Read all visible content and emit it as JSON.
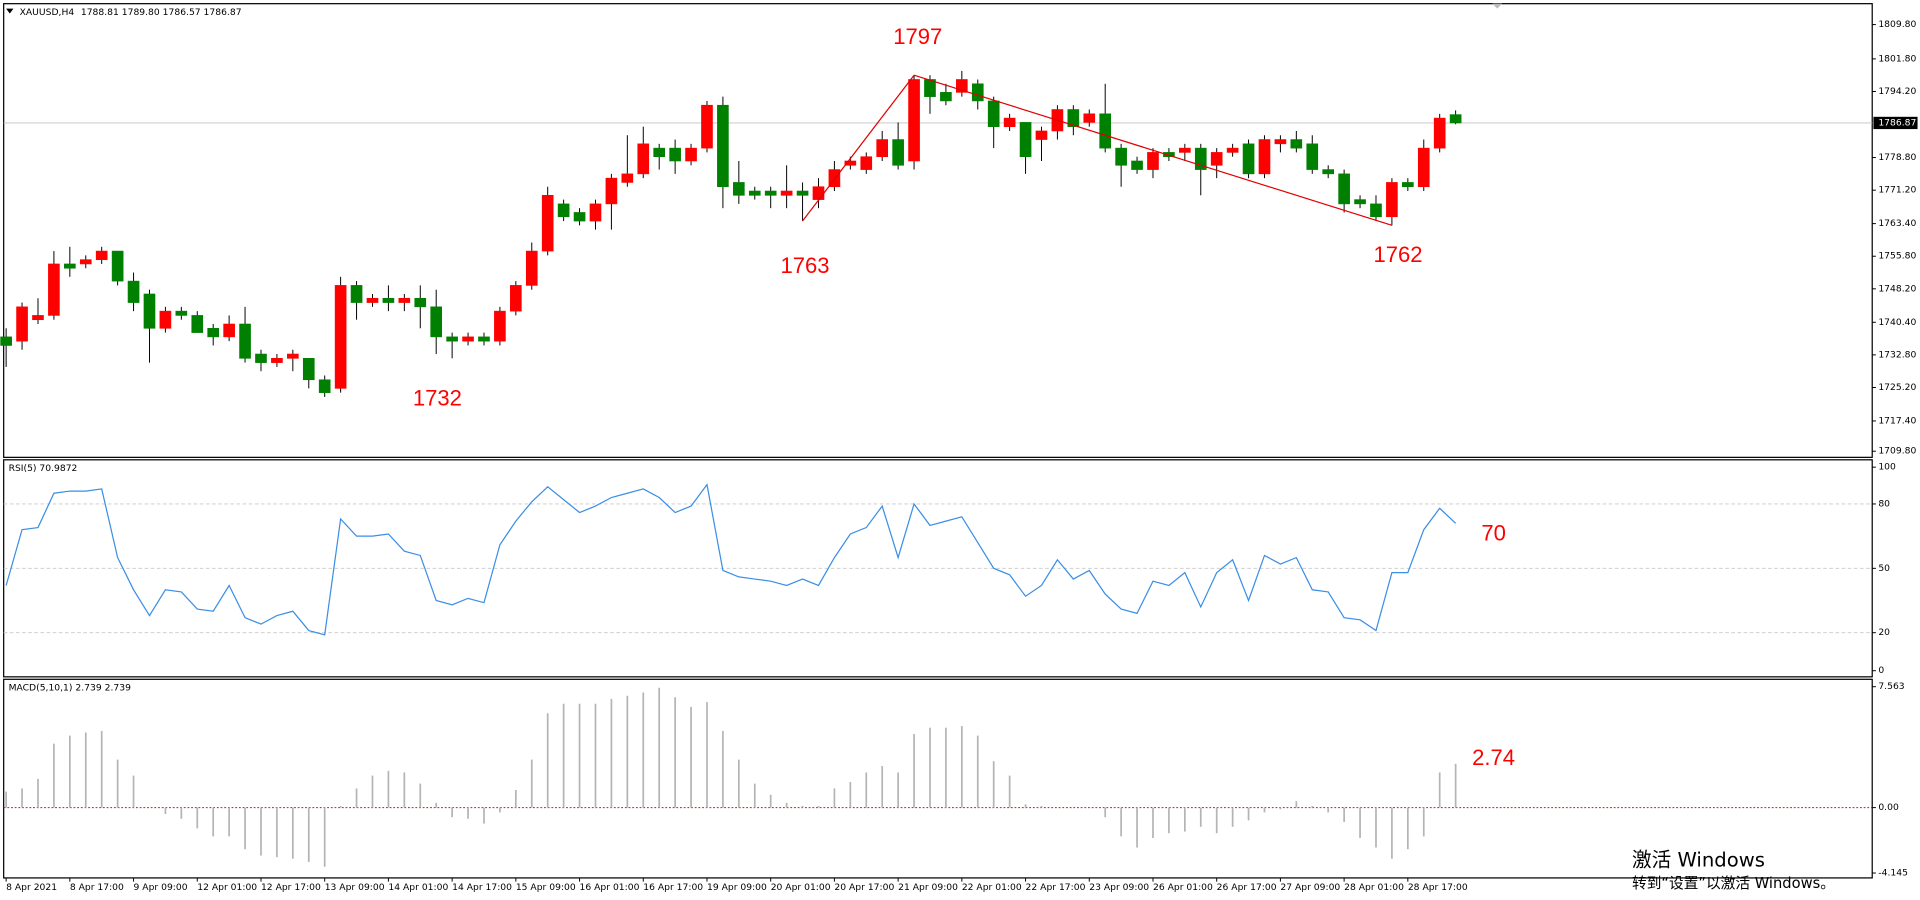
{
  "chart_data": [
    {
      "type": "candlestick",
      "title": "XAUUSD,H4",
      "subtitle": "1788.81 1789.80 1786.57 1786.87",
      "categories": [
        "8 Apr 2021",
        null,
        null,
        null,
        "8 Apr 17:00",
        null,
        null,
        null,
        "9 Apr 09:00",
        null,
        null,
        null,
        "12 Apr 01:00",
        null,
        null,
        null,
        "12 Apr 17:00",
        null,
        null,
        null,
        "13 Apr 09:00",
        null,
        null,
        null,
        "14 Apr 01:00",
        null,
        null,
        null,
        "14 Apr 17:00",
        null,
        null,
        null,
        "15 Apr 09:00",
        null,
        null,
        null,
        "16 Apr 01:00",
        null,
        null,
        null,
        "16 Apr 17:00",
        null,
        null,
        null,
        "19 Apr 09:00",
        null,
        null,
        null,
        "20 Apr 01:00",
        null,
        null,
        null,
        "20 Apr 17:00",
        null,
        null,
        null,
        "21 Apr 09:00",
        null,
        null,
        null,
        "22 Apr 01:00",
        null,
        null,
        null,
        "22 Apr 17:00",
        null,
        null,
        null,
        "23 Apr 09:00",
        null,
        null,
        null,
        "26 Apr 01:00",
        null,
        null,
        null,
        "26 Apr 17:00",
        null,
        null,
        null,
        "27 Apr 09:00",
        null,
        null,
        null,
        "28 Apr 01:00",
        null,
        null,
        null,
        "28 Apr 17:00",
        null,
        null,
        null
      ],
      "open": [
        1737,
        1736,
        1741,
        1742,
        1754,
        1754,
        1755,
        1757,
        1750,
        1747,
        1739,
        1743,
        1742,
        1739,
        1737,
        1740,
        1733,
        1731,
        1732,
        1732,
        1727,
        1725,
        1749,
        1745,
        1746,
        1745,
        1746,
        1744,
        1737,
        1736,
        1737,
        1736,
        1743,
        1749,
        1757,
        1768,
        1766,
        1764,
        1768,
        1773,
        1775,
        1781,
        1781,
        1778,
        1781,
        1791,
        1773,
        1771,
        1771,
        1770,
        1771,
        1769,
        1772,
        1777,
        1776,
        1779,
        1783,
        1778,
        1797,
        1794,
        1794,
        1796,
        1792,
        1786,
        1787,
        1783,
        1785,
        1790,
        1787,
        1789,
        1781,
        1778,
        1776,
        1780,
        1780,
        1781,
        1777,
        1780,
        1782,
        1775,
        1782,
        1783,
        1782,
        1776,
        1775,
        1769,
        1768,
        1765,
        1773,
        1772,
        1781,
        1788.81
      ],
      "high": [
        1739,
        1745,
        1746,
        1757,
        1758,
        1756,
        1758,
        1757,
        1752,
        1748,
        1744,
        1744,
        1743,
        1740,
        1742,
        1744,
        1734,
        1733,
        1734,
        1732,
        1728,
        1751,
        1750,
        1747,
        1749,
        1747,
        1749,
        1748,
        1738,
        1738,
        1738,
        1744,
        1750,
        1759,
        1772,
        1769,
        1767,
        1769,
        1775,
        1784,
        1786,
        1782,
        1783,
        1782,
        1792,
        1793,
        1778,
        1772,
        1772,
        1777,
        1773,
        1774,
        1778,
        1779,
        1780,
        1785,
        1787,
        1798,
        1798,
        1796,
        1799,
        1797,
        1793,
        1789,
        1787,
        1786,
        1791,
        1791,
        1790,
        1796,
        1782,
        1779,
        1781,
        1781,
        1782,
        1782,
        1781,
        1782,
        1783,
        1784,
        1784,
        1785,
        1784,
        1777,
        1776,
        1770,
        1770,
        1774,
        1774,
        1783,
        1789,
        1789.8
      ],
      "low": [
        1730,
        1734,
        1740,
        1741,
        1751,
        1753,
        1754,
        1749,
        1743,
        1731,
        1738,
        1741,
        1738,
        1735,
        1736,
        1731,
        1729,
        1730,
        1729,
        1725,
        1723,
        1724,
        1741,
        1744,
        1743,
        1743,
        1739,
        1733,
        1732,
        1735,
        1735,
        1735,
        1742,
        1748,
        1756,
        1764,
        1763,
        1762,
        1762,
        1772,
        1774,
        1776,
        1775,
        1777,
        1780,
        1767,
        1768,
        1769,
        1767,
        1767,
        1764,
        1767,
        1771,
        1776,
        1775,
        1778,
        1776,
        1776,
        1789,
        1791,
        1793,
        1790,
        1781,
        1785,
        1775,
        1778,
        1783,
        1784,
        1786,
        1780,
        1772,
        1775,
        1774,
        1778,
        1778,
        1770,
        1774,
        1779,
        1774,
        1774,
        1780,
        1780,
        1775,
        1774,
        1766,
        1767,
        1764,
        1763,
        1771,
        1771,
        1780,
        1786.57
      ],
      "close": [
        1735,
        1744,
        1742,
        1754,
        1753,
        1755,
        1757,
        1750,
        1745,
        1739,
        1743,
        1742,
        1738,
        1737,
        1740,
        1732,
        1731,
        1732,
        1733,
        1727,
        1724,
        1749,
        1745,
        1746,
        1745,
        1746,
        1744,
        1737,
        1736,
        1737,
        1736,
        1743,
        1749,
        1757,
        1770,
        1765,
        1764,
        1768,
        1774,
        1775,
        1782,
        1779,
        1778,
        1781,
        1791,
        1772,
        1770,
        1770,
        1770,
        1771,
        1770,
        1772,
        1776,
        1778,
        1779,
        1783,
        1777,
        1797,
        1793,
        1792,
        1797,
        1792,
        1786,
        1788,
        1779,
        1785,
        1790,
        1786,
        1789,
        1781,
        1777,
        1776,
        1780,
        1779,
        1781,
        1776,
        1780,
        1781,
        1775,
        1783,
        1783,
        1781,
        1776,
        1775,
        1768,
        1768,
        1765,
        1773,
        1772,
        1781,
        1788,
        1786.87
      ],
      "up_color": "#ff0000",
      "down_color": "#008000",
      "trendline_color": "#e00000",
      "price_line": true,
      "ylim": [
        1709.2,
        1814.1
      ],
      "yticks": [
        {
          "value": 1709.8,
          "label": "1709.80"
        },
        {
          "value": 1717.4,
          "label": "1717.40"
        },
        {
          "value": 1725.2,
          "label": "1725.20"
        },
        {
          "value": 1732.8,
          "label": "1732.80"
        },
        {
          "value": 1740.4,
          "label": "1740.40"
        },
        {
          "value": 1748.2,
          "label": "1748.20"
        },
        {
          "value": 1755.8,
          "label": "1755.80"
        },
        {
          "value": 1763.4,
          "label": "1763.40"
        },
        {
          "value": 1771.2,
          "label": "1771.20"
        },
        {
          "value": 1778.8,
          "label": "1778.80"
        },
        {
          "value": 1794.2,
          "label": "1794.20"
        },
        {
          "value": 1801.8,
          "label": "1801.80"
        },
        {
          "value": 1809.8,
          "label": "1809.80"
        }
      ],
      "grid": false,
      "annotations": [
        1732,
        1763,
        1797,
        1762
      ],
      "annotation_color": "#ff0000"
    },
    {
      "type": "line",
      "title": "RSI(5) 70.9872",
      "color": "#3a8ee6",
      "values": [
        42,
        68,
        69,
        85,
        86,
        86,
        87,
        55,
        40,
        28,
        40,
        39,
        31,
        30,
        42,
        27,
        24,
        28,
        30,
        21,
        19,
        73,
        65,
        65,
        66,
        58,
        56,
        35,
        33,
        36,
        34,
        61,
        72,
        81,
        88,
        82,
        76,
        79,
        83,
        85,
        87,
        83,
        76,
        79,
        89,
        49,
        46,
        45,
        44,
        42,
        45,
        42,
        55,
        66,
        69,
        79,
        55,
        80,
        70,
        72,
        74,
        62,
        50,
        47,
        37,
        42,
        54,
        45,
        49,
        38,
        31,
        29,
        44,
        42,
        48,
        32,
        48,
        54,
        35,
        56,
        52,
        55,
        40,
        39,
        27,
        26,
        21,
        48,
        48,
        68,
        78,
        70.9872
      ],
      "ylim": [
        0,
        100
      ],
      "yticks": [
        0,
        20,
        50,
        80,
        100
      ],
      "grid": true,
      "annotations": [
        70
      ],
      "annotation_color": "#ff0000"
    },
    {
      "type": "bar",
      "title": "MACD(5,10,1) 2.739 2.739",
      "color": "#b4b4b4",
      "values": [
        1.0,
        1.2,
        1.8,
        4.0,
        4.5,
        4.7,
        4.8,
        3.0,
        2.0,
        0,
        -0.4,
        -0.7,
        -1.3,
        -1.8,
        -1.8,
        -2.6,
        -3.0,
        -3.1,
        -3.2,
        -3.4,
        -3.7,
        0.1,
        1.2,
        2.0,
        2.3,
        2.2,
        1.5,
        0.3,
        -0.6,
        -0.7,
        -1.0,
        -0.3,
        1.1,
        3.0,
        5.9,
        6.5,
        6.5,
        6.5,
        6.8,
        7.0,
        7.2,
        7.5,
        6.9,
        6.3,
        6.6,
        4.8,
        3.0,
        1.5,
        0.8,
        0.3,
        0.1,
        0.1,
        1.2,
        1.6,
        2.2,
        2.6,
        2.2,
        4.6,
        5.0,
        5.0,
        5.1,
        4.5,
        2.9,
        2.0,
        0.2,
        0.1,
        0,
        0,
        0,
        -0.6,
        -1.8,
        -2.5,
        -1.9,
        -1.6,
        -1.5,
        -1.2,
        -1.6,
        -1.2,
        -0.8,
        -0.3,
        -0.1,
        0.4,
        0.1,
        -0.3,
        -0.9,
        -1.9,
        -2.5,
        -3.2,
        -2.6,
        -1.8,
        2.2,
        2.739
      ],
      "ylim": [
        -4.4,
        7.95
      ],
      "yticks": [
        -4.145,
        {
          "value": 0,
          "label": "0.00"
        },
        7.563
      ],
      "grid": false,
      "zero_line_color": "#ff0000",
      "annotations": [
        2.74
      ],
      "annotation_color": "#ff0000"
    }
  ],
  "watermark": {
    "title": "激活 Windows",
    "subtitle": "转到“设置”以激活 Windows。"
  }
}
